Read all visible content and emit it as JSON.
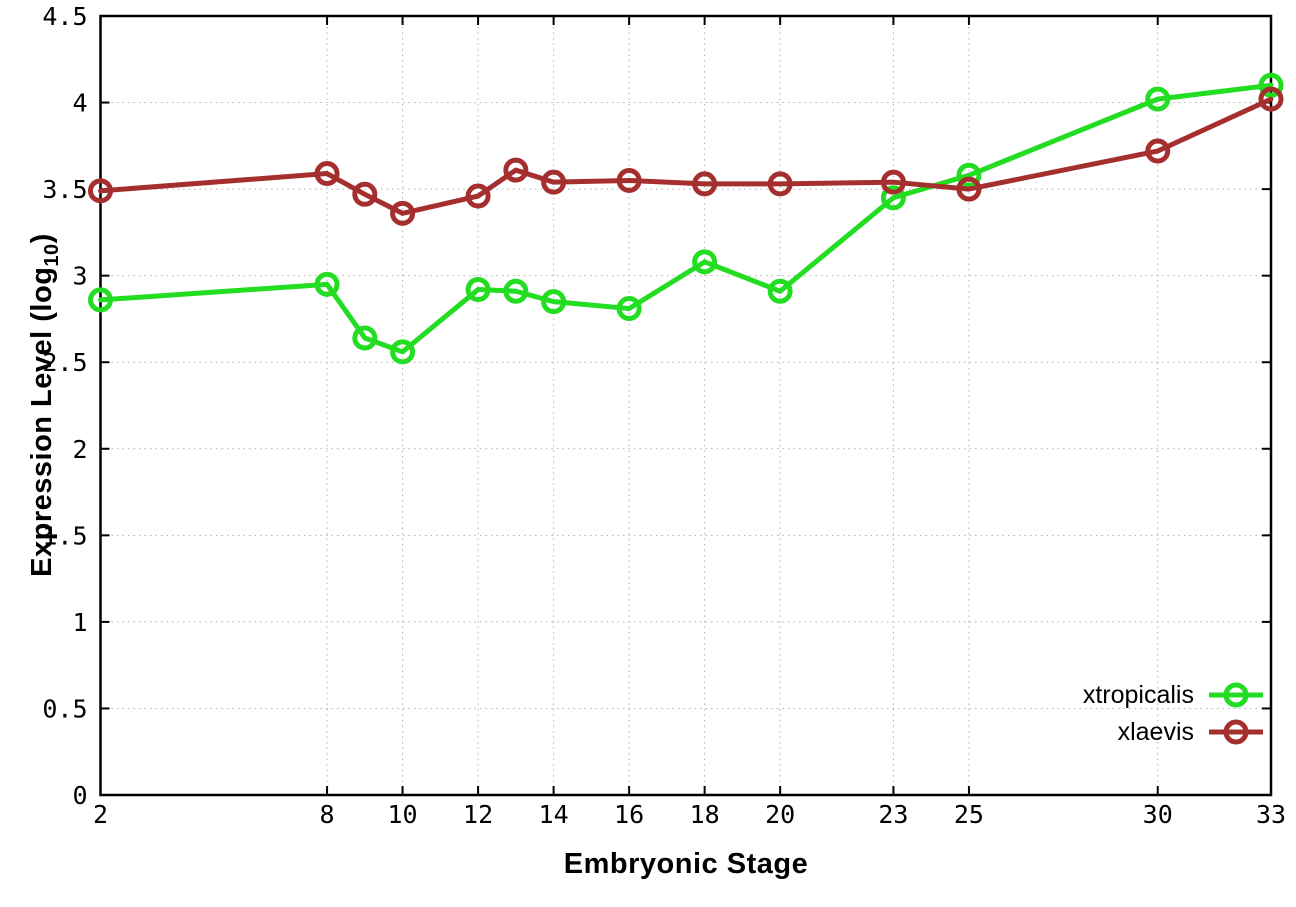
{
  "chart_data": {
    "type": "line",
    "title": "",
    "xlabel": "Embryonic Stage",
    "ylabel": "Expression Level (log10)",
    "ylabel_main": "Expression Level (log",
    "ylabel_sub": "10",
    "ylabel_end": ")",
    "x": [
      2,
      8,
      9,
      10,
      12,
      13,
      14,
      16,
      18,
      20,
      23,
      25,
      30,
      33
    ],
    "x_ticks": [
      2,
      8,
      10,
      12,
      14,
      16,
      18,
      20,
      23,
      25,
      30,
      33
    ],
    "y_ticks": [
      0,
      0.5,
      1,
      1.5,
      2,
      2.5,
      3,
      3.5,
      4,
      4.5
    ],
    "xlim": [
      2,
      33
    ],
    "ylim": [
      0,
      4.5
    ],
    "grid": true,
    "legend_position": "bottom-right",
    "series": [
      {
        "name": "xtropicalis",
        "color": "#23dd23",
        "values": [
          2.86,
          2.95,
          2.64,
          2.56,
          2.92,
          2.91,
          2.85,
          2.81,
          3.08,
          2.91,
          3.45,
          3.58,
          4.02,
          4.1
        ]
      },
      {
        "name": "xlaevis",
        "color": "#a52f2f",
        "values": [
          3.49,
          3.59,
          3.47,
          3.36,
          3.46,
          3.61,
          3.54,
          3.55,
          3.53,
          3.53,
          3.54,
          3.5,
          3.72,
          4.02
        ]
      }
    ],
    "colors": {
      "axis": "#000000",
      "grid": "#b0b0b0",
      "tick_text": "#000000"
    }
  }
}
